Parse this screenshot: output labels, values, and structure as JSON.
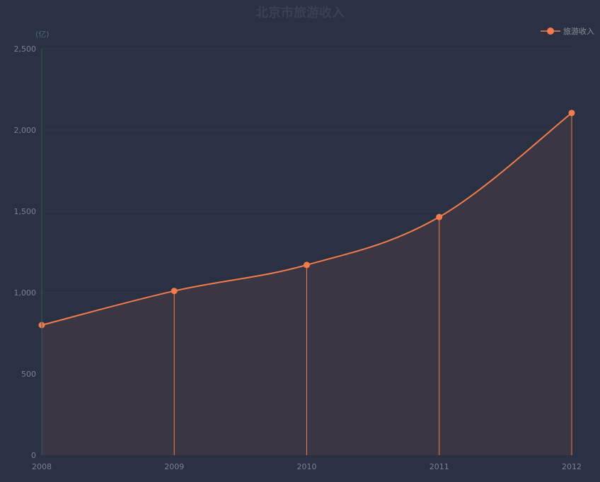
{
  "chart_data": {
    "type": "area",
    "title": "北京市旅游收入",
    "ylabel": "(亿)",
    "categories": [
      "2008",
      "2009",
      "2010",
      "2011",
      "2012"
    ],
    "series": [
      {
        "name": "旅游收入",
        "values": [
          800,
          1010,
          1170,
          1465,
          2105
        ]
      }
    ],
    "ylim": [
      0,
      2500
    ],
    "yticks": [
      0,
      500,
      1000,
      1500,
      2000,
      2500
    ],
    "ytick_labels": [
      "0",
      "500",
      "1,000",
      "1,500",
      "2,000",
      "2,500"
    ],
    "grid": true,
    "legend_position": "top-right",
    "colors": {
      "background": "#2a3142",
      "series": "#f47c4c",
      "area_fill": "#3a3643",
      "grid": "#323a4a",
      "axis": "#3a5a5a"
    }
  }
}
